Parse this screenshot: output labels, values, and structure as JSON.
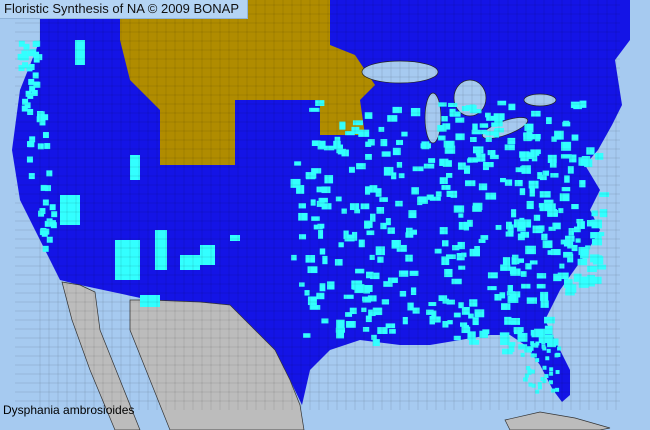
{
  "header": {
    "title": "Floristic Synthesis of NA © 2009 BONAP"
  },
  "species": {
    "name": "Dysphania ambrosioides"
  },
  "colors": {
    "ocean": "#a6caf0",
    "present_in_county": "#33ffff",
    "present_in_state": "#1414e6",
    "absent_from_state": "#b08c00",
    "outside_range": "#bcbcbc"
  }
}
